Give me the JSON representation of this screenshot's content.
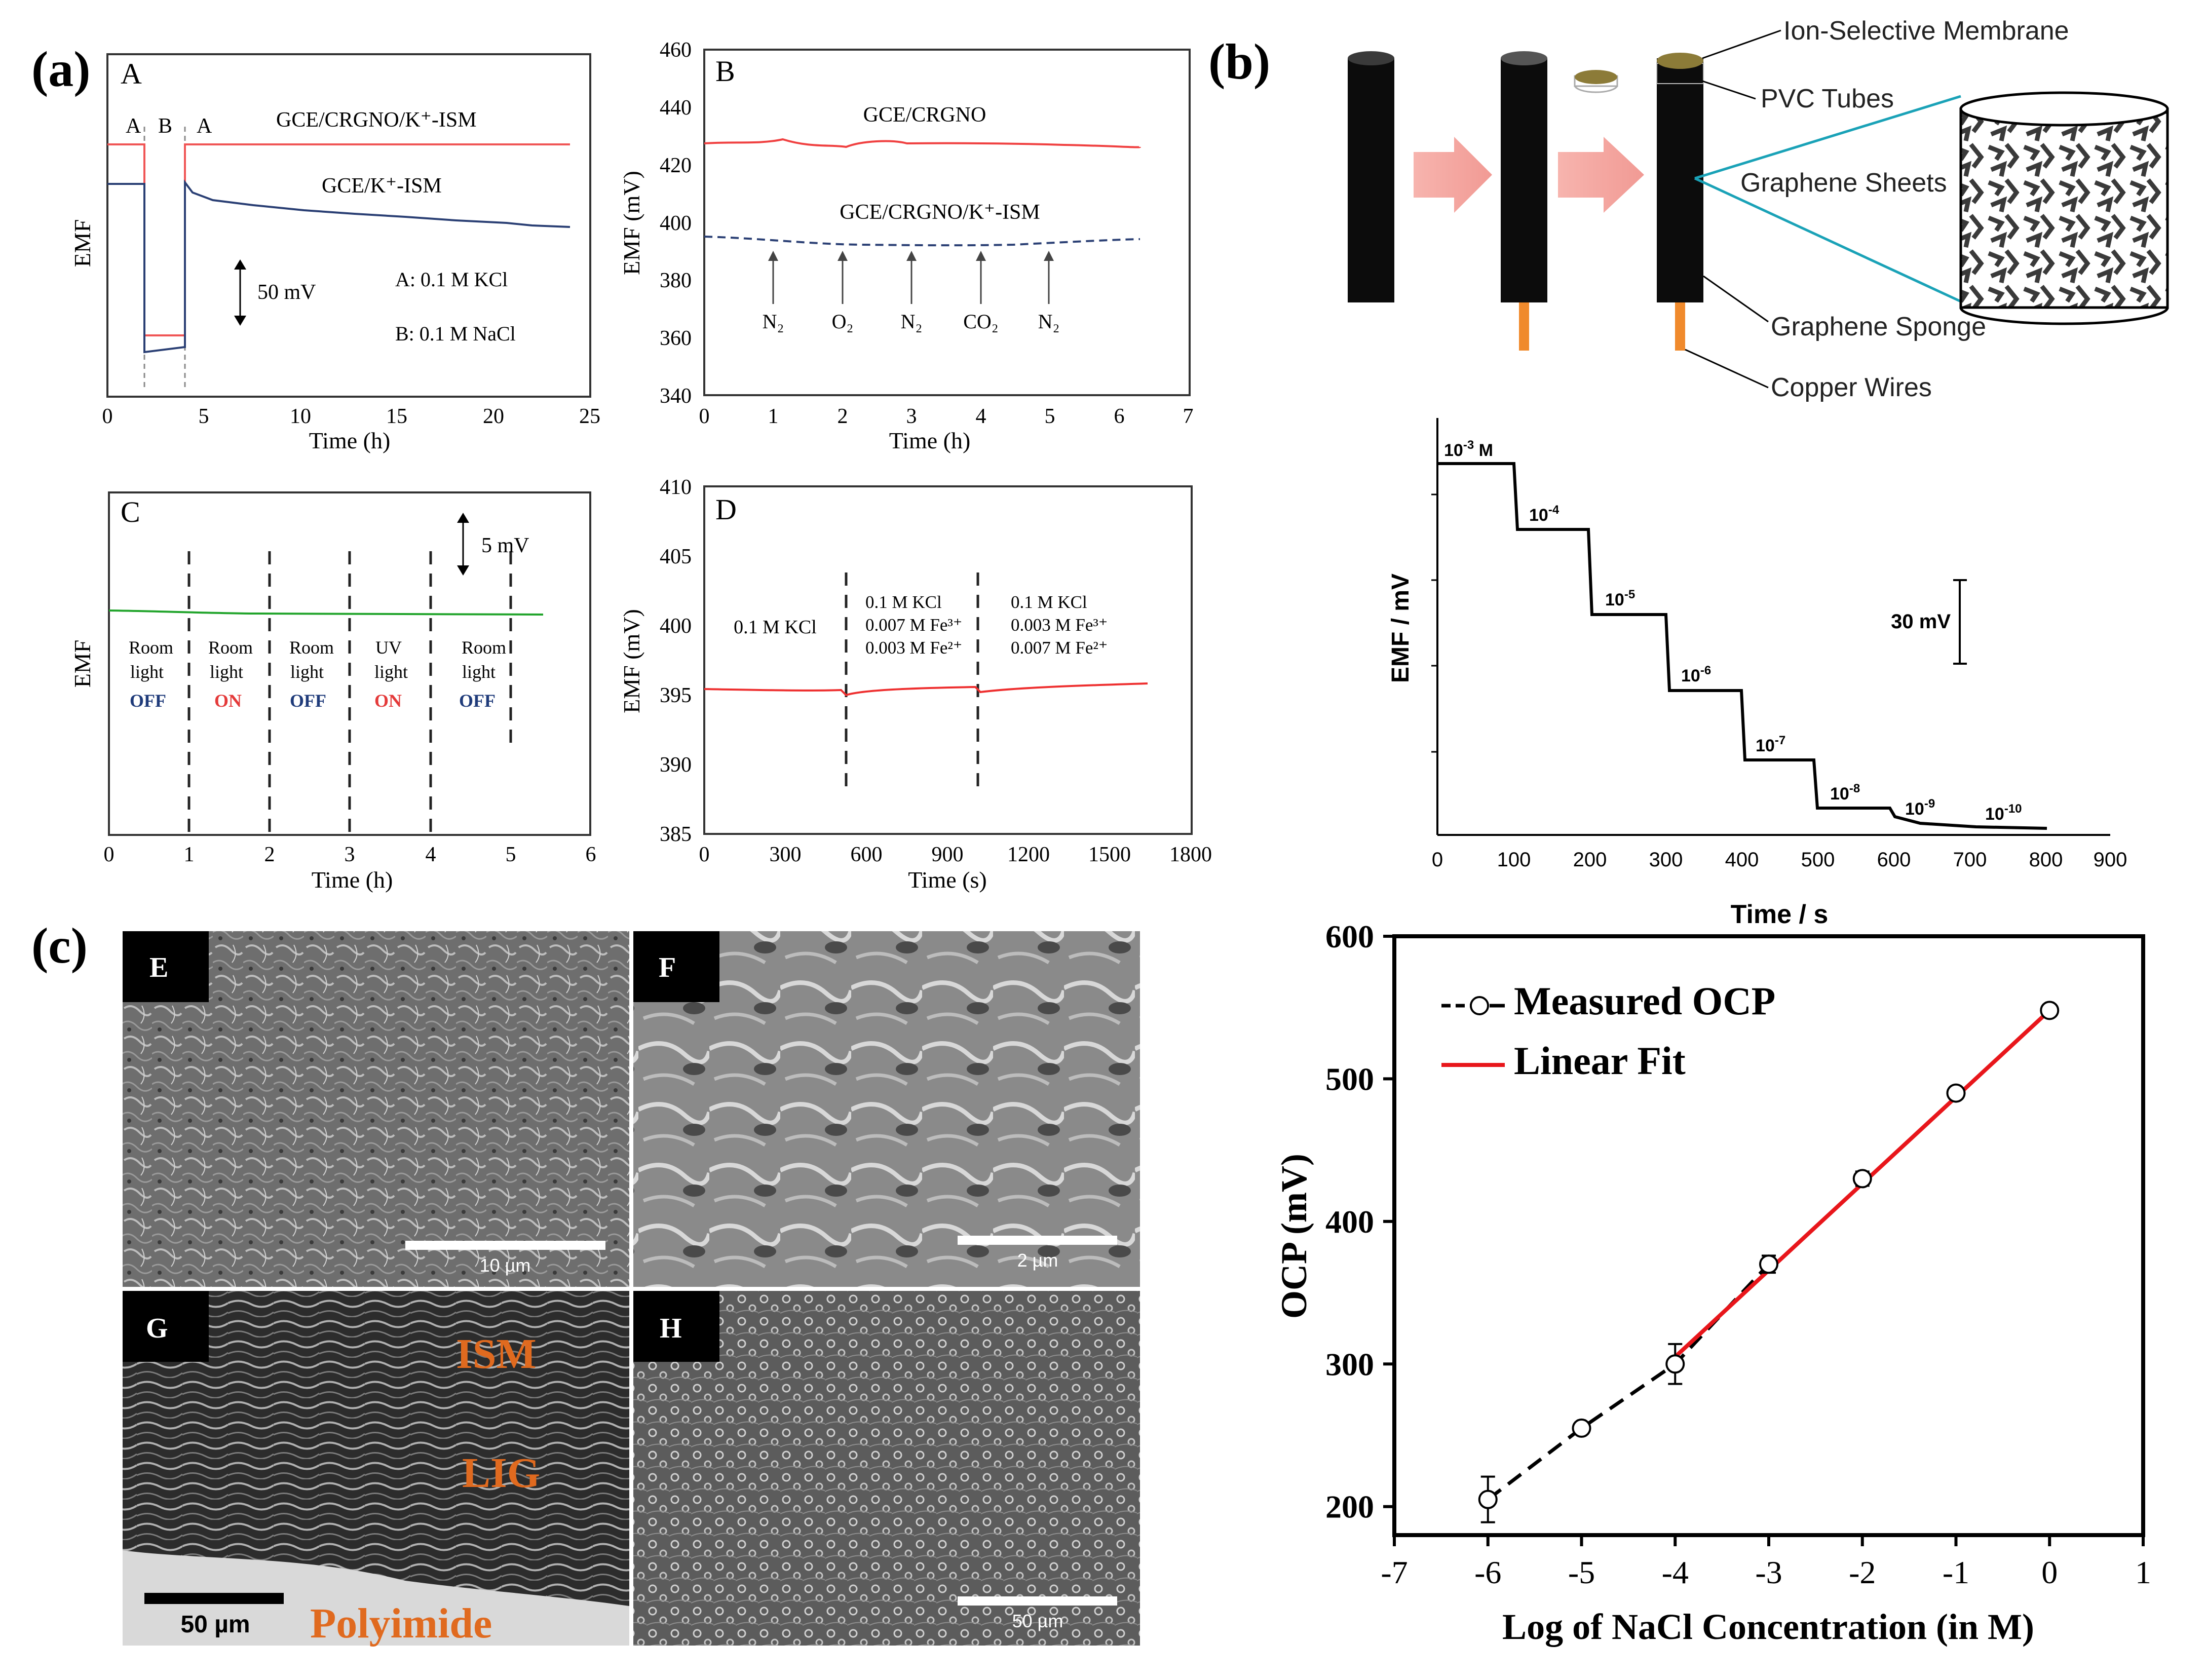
{
  "panel_labels": {
    "a": "(a)",
    "b": "(b)",
    "c": "(c)"
  },
  "panelA": {
    "letter": "A",
    "region_labels": [
      "A",
      "B",
      "A"
    ],
    "series_top_label": "GCE/CRGNO/K⁺-ISM",
    "series_bottom_label": "GCE/K⁺-ISM",
    "scale_label": "50 mV",
    "legend_A": "A: 0.1 M KCl",
    "legend_B": "B: 0.1 M NaCl",
    "ylabel": "EMF",
    "xlabel": "Time (h)",
    "xticks": [
      "0",
      "5",
      "10",
      "15",
      "20",
      "25"
    ]
  },
  "panelB": {
    "letter": "B",
    "ylabel": "EMF (mV)",
    "xlabel": "Time (h)",
    "xticks": [
      "0",
      "1",
      "2",
      "3",
      "4",
      "5",
      "6",
      "7"
    ],
    "yticks": [
      "340",
      "360",
      "380",
      "400",
      "420",
      "440",
      "460"
    ],
    "series_top_label": "GCE/CRGNO",
    "series_bottom_label": "GCE/CRGNO/K⁺-ISM",
    "gas_labels": [
      "N₂",
      "O₂",
      "N₂",
      "CO₂",
      "N₂"
    ]
  },
  "panelC": {
    "letter": "C",
    "ylabel": "EMF",
    "xlabel": "Time (h)",
    "xticks": [
      "0",
      "1",
      "2",
      "3",
      "4",
      "5",
      "6"
    ],
    "scale_label": "5 mV",
    "conditions": [
      {
        "l1": "Room",
        "l2": "light",
        "state": "OFF"
      },
      {
        "l1": "Room",
        "l2": "light",
        "state": "ON"
      },
      {
        "l1": "Room",
        "l2": "light",
        "state": "OFF"
      },
      {
        "l1": "UV",
        "l2": "light",
        "state": "ON"
      },
      {
        "l1": "Room",
        "l2": "light",
        "state": "OFF"
      }
    ]
  },
  "panelD": {
    "letter": "D",
    "ylabel": "EMF (mV)",
    "xlabel": "Time (s)",
    "xticks": [
      "0",
      "300",
      "600",
      "900",
      "1200",
      "1500",
      "1800"
    ],
    "yticks": [
      "385",
      "390",
      "395",
      "400",
      "405",
      "410"
    ],
    "seg1": "0.1 M KCl",
    "seg2": [
      "0.1 M KCl",
      "0.007 M Fe³⁺",
      "0.003 M Fe²⁺"
    ],
    "seg3": [
      "0.1 M KCl",
      "0.003 M Fe³⁺",
      "0.007 M Fe²⁺"
    ]
  },
  "schematic": {
    "labels": [
      "Ion-Selective Membrane",
      "PVC Tubes",
      "Graphene Sheets",
      "Graphene Sponge",
      "Copper Wires"
    ]
  },
  "step_chart": {
    "ylabel": "EMF / mV",
    "xlabel": "Time / s",
    "xticks": [
      "0",
      "100",
      "200",
      "300",
      "400",
      "500",
      "600",
      "700",
      "800",
      "900"
    ],
    "scale_label": "30 mV",
    "steps": [
      {
        "base": "10",
        "exp": "-3",
        "suffix": " M"
      },
      {
        "base": "10",
        "exp": "-4",
        "suffix": ""
      },
      {
        "base": "10",
        "exp": "-5",
        "suffix": ""
      },
      {
        "base": "10",
        "exp": "-6",
        "suffix": ""
      },
      {
        "base": "10",
        "exp": "-7",
        "suffix": ""
      },
      {
        "base": "10",
        "exp": "-8",
        "suffix": ""
      },
      {
        "base": "10",
        "exp": "-9",
        "suffix": ""
      },
      {
        "base": "10",
        "exp": "-10",
        "suffix": ""
      }
    ]
  },
  "sem": {
    "E": {
      "letter": "E",
      "scale": "10 µm"
    },
    "F": {
      "letter": "F",
      "scale": "2 µm"
    },
    "G": {
      "letter": "G",
      "scale": "50 µm",
      "label_ism": "ISM",
      "label_lig": "LIG",
      "label_poly": "Polyimide"
    },
    "H": {
      "letter": "H",
      "scale": "50 µm"
    }
  },
  "chart_data": {
    "type": "scatter",
    "title": "",
    "xlabel": "Log of NaCl Concentration (in M)",
    "ylabel": "OCP (mV)",
    "xlim": [
      -7,
      1
    ],
    "ylim": [
      180,
      600
    ],
    "xticks": [
      "-7",
      "-6",
      "-5",
      "-4",
      "-3",
      "-2",
      "-1",
      "0",
      "1"
    ],
    "yticks": [
      "200",
      "300",
      "400",
      "500",
      "600"
    ],
    "legend": [
      "Measured OCP",
      "Linear Fit"
    ],
    "series": [
      {
        "name": "Measured OCP",
        "x": [
          -6,
          -5,
          -4,
          -3,
          -2,
          -1,
          0
        ],
        "y": [
          205,
          255,
          300,
          370,
          430,
          490,
          548
        ],
        "err": [
          16,
          4,
          14,
          6,
          5,
          4,
          4
        ]
      },
      {
        "name": "Linear Fit",
        "x": [
          -4,
          0
        ],
        "y": [
          305,
          548
        ]
      }
    ],
    "colors": {
      "measured": "#000000",
      "fit": "#e8161b"
    }
  }
}
